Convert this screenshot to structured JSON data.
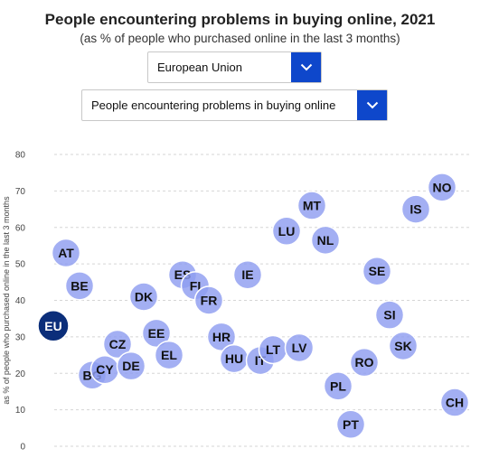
{
  "header": {
    "title": "People encountering problems in buying online, 2021",
    "subtitle": "(as % of people who purchased online in the last 3 months)"
  },
  "controls": {
    "country_select": {
      "value": "European Union"
    },
    "indicator_select": {
      "value": "People encountering problems in buying online"
    }
  },
  "colors": {
    "bubble": "#8f9df0",
    "bubble_highlight": "#0b2e7a",
    "dropdown_button": "#0e47cb",
    "grid": "#d5d5d5"
  },
  "icons": {
    "dropdown": "chevron-down-icon"
  },
  "chart_data": {
    "type": "scatter",
    "title": "People encountering problems in buying online, 2021",
    "subtitle": "(as % of people who purchased online in the last 3 months)",
    "ylabel": "as % of people who purchased online in the last 3 months",
    "ylim": [
      0,
      80
    ],
    "yticks": [
      0,
      10,
      20,
      30,
      40,
      50,
      60,
      70,
      80
    ],
    "grid": "horizontal dashed",
    "highlight": "EU",
    "points": [
      {
        "label": "EU",
        "y": 33
      },
      {
        "label": "AT",
        "y": 53
      },
      {
        "label": "BE",
        "y": 44
      },
      {
        "label": "BG",
        "y": 19.5
      },
      {
        "label": "CY",
        "y": 21
      },
      {
        "label": "CZ",
        "y": 28
      },
      {
        "label": "DE",
        "y": 22
      },
      {
        "label": "DK",
        "y": 41
      },
      {
        "label": "EE",
        "y": 31
      },
      {
        "label": "EL",
        "y": 25
      },
      {
        "label": "ES",
        "y": 47
      },
      {
        "label": "FI",
        "y": 44
      },
      {
        "label": "FR",
        "y": 40
      },
      {
        "label": "HR",
        "y": 30
      },
      {
        "label": "HU",
        "y": 24
      },
      {
        "label": "IE",
        "y": 47
      },
      {
        "label": "IT",
        "y": 23.5
      },
      {
        "label": "LT",
        "y": 26.5
      },
      {
        "label": "LV",
        "y": 27
      },
      {
        "label": "LU",
        "y": 59
      },
      {
        "label": "MT",
        "y": 66
      },
      {
        "label": "NL",
        "y": 56.5
      },
      {
        "label": "PL",
        "y": 16.5
      },
      {
        "label": "PT",
        "y": 6
      },
      {
        "label": "RO",
        "y": 23
      },
      {
        "label": "SE",
        "y": 48
      },
      {
        "label": "SI",
        "y": 36
      },
      {
        "label": "SK",
        "y": 27.5
      },
      {
        "label": "IS",
        "y": 65
      },
      {
        "label": "NO",
        "y": 71
      },
      {
        "label": "CH",
        "y": 12
      }
    ]
  }
}
